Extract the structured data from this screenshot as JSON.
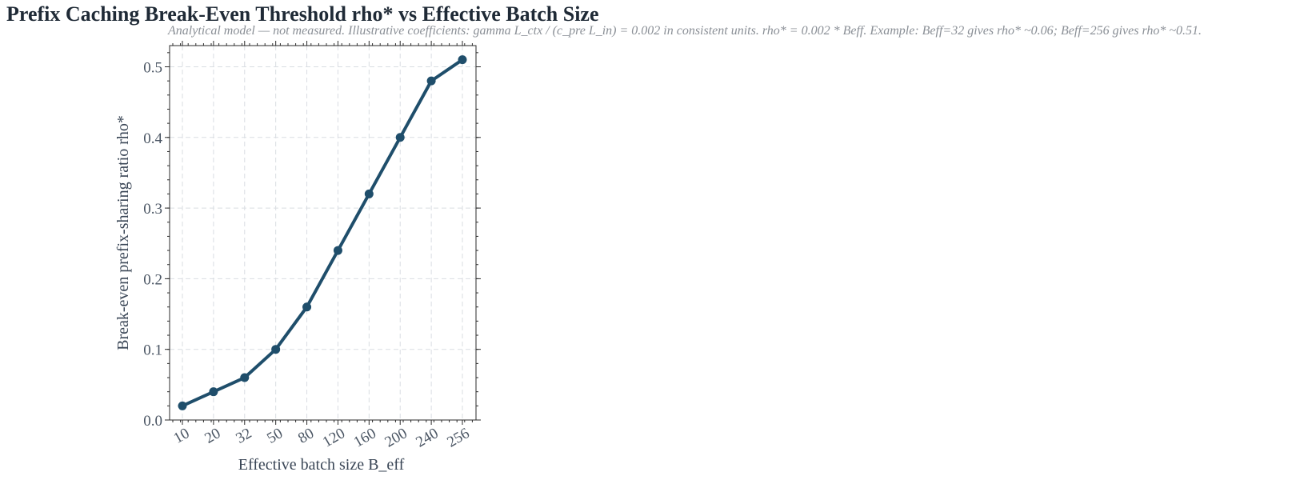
{
  "chart_data": {
    "type": "line",
    "title": "Prefix Caching Break-Even Threshold rho* vs Effective Batch Size",
    "subtitle": "Analytical model — not measured. Illustrative coefficients: gamma L_ctx / (c_pre L_in) = 0.002 in consistent units. rho* = 0.002 * Beff. Example: Beff=32 gives rho* ~0.06; Beff=256 gives rho* ~0.51.",
    "xlabel": "Effective batch size B_eff",
    "ylabel": "Break-even prefix-sharing ratio rho*",
    "categories": [
      "10",
      "20",
      "32",
      "50",
      "80",
      "120",
      "160",
      "200",
      "240",
      "256"
    ],
    "series": [
      {
        "values": [
          0.02,
          0.04,
          0.06,
          0.1,
          0.16,
          0.24,
          0.32,
          0.4,
          0.48,
          0.51
        ]
      }
    ],
    "ylim": [
      0,
      0.53
    ],
    "yticks": [
      0.0,
      0.1,
      0.2,
      0.3,
      0.4,
      0.5
    ],
    "ytick_labels": [
      "0.0",
      "0.1",
      "0.2",
      "0.3",
      "0.4",
      "0.5"
    ],
    "grid": true,
    "line_color": "#1f4e6b"
  }
}
